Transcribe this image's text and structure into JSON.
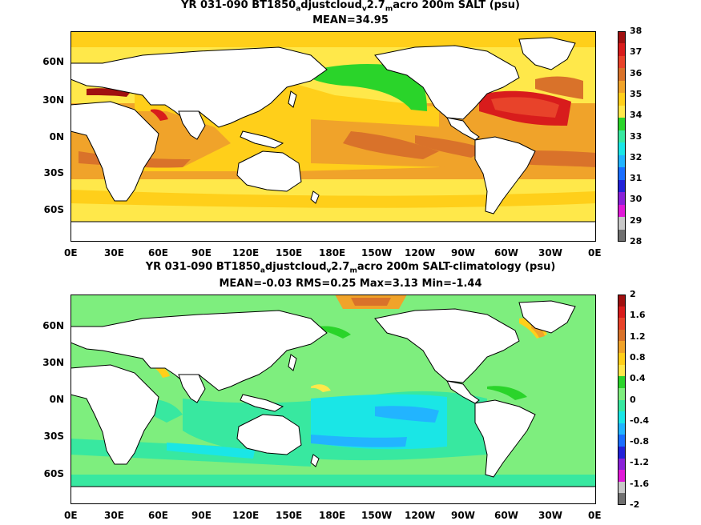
{
  "panels": [
    {
      "title_parts": [
        "YR 031-090 BT1850",
        "a",
        "djustcloud",
        "v",
        "2.7",
        "m",
        "acro 200m SALT (psu)"
      ],
      "subtitle": "MEAN=34.95",
      "colorbar": {
        "labels": [
          "38",
          "37",
          "36",
          "35",
          "34",
          "33",
          "32",
          "31",
          "30",
          "29",
          "28"
        ],
        "colors": [
          "#a01010",
          "#d81c1c",
          "#e8432a",
          "#d9722a",
          "#f0a32a",
          "#ffcf1a",
          "#ffe84a",
          "#2ad42a",
          "#38e8a0",
          "#1ae6e6",
          "#22b4ff",
          "#1a6eff",
          "#2222d8",
          "#8a22d8",
          "#e01ad8",
          "#c8c8c8",
          "#707070"
        ]
      }
    },
    {
      "title_parts": [
        "YR 031-090 BT1850",
        "a",
        "djustcloud",
        "v",
        "2.7",
        "m",
        "acro 200m SALT-climatology (psu)"
      ],
      "subtitle": "MEAN=-0.03   RMS=0.25   Max=3.13   Min=-1.44",
      "colorbar": {
        "labels": [
          "2",
          "1.6",
          "1.2",
          "0.8",
          "0.4",
          "0",
          "-0.4",
          "-0.8",
          "-1.2",
          "-1.6",
          "-2"
        ],
        "colors": [
          "#a01010",
          "#d81c1c",
          "#e8432a",
          "#d9722a",
          "#f0a32a",
          "#ffcf1a",
          "#ffe84a",
          "#2ad42a",
          "#7eee7e",
          "#38e8a0",
          "#1ae6e6",
          "#22b4ff",
          "#1a6eff",
          "#2222d8",
          "#8a22d8",
          "#e01ad8",
          "#c8c8c8",
          "#707070"
        ]
      }
    }
  ],
  "lat_labels": [
    "60N",
    "30N",
    "0N",
    "30S",
    "60S"
  ],
  "lon_labels": [
    "0E",
    "30E",
    "60E",
    "90E",
    "120E",
    "150E",
    "180E",
    "150W",
    "120W",
    "90W",
    "60W",
    "30W",
    "0E"
  ],
  "colors": {
    "land": "#ffffff",
    "coast": "#000000"
  }
}
